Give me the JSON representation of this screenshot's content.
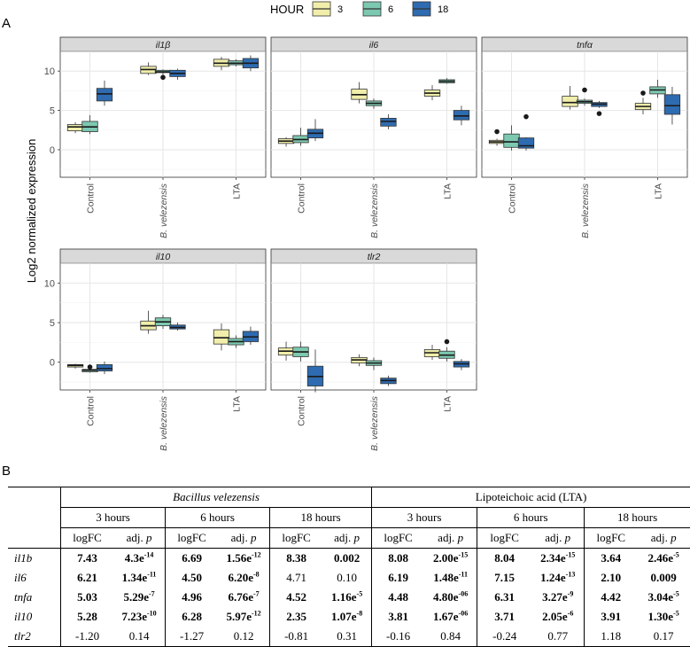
{
  "panels": {
    "a": "A",
    "b": "B"
  },
  "chart_data": {
    "type": "boxplot",
    "legend": {
      "title": "HOUR",
      "entries": [
        "3",
        "6",
        "18"
      ],
      "colors": [
        "#F0EEAA",
        "#7DC8B0",
        "#2E6BB0"
      ],
      "placement": "top-center"
    },
    "ylabel": "Log2 normalized expression",
    "ylim": [
      -3.5,
      12.5
    ],
    "yticks": [
      "0",
      "5",
      "10"
    ],
    "categories": [
      "Control",
      "B. velezensis",
      "LTA"
    ],
    "facets": [
      {
        "title": "il1β",
        "boxes": [
          [
            {
              "q1": 2.4,
              "med": 2.9,
              "q3": 3.2,
              "lo": 2.1,
              "hi": 3.5,
              "out": []
            },
            {
              "q1": 2.3,
              "med": 2.9,
              "q3": 3.6,
              "lo": 2.0,
              "hi": 4.4,
              "out": []
            },
            {
              "q1": 6.2,
              "med": 7.1,
              "q3": 7.8,
              "lo": 5.6,
              "hi": 8.8,
              "out": []
            }
          ],
          [
            {
              "q1": 9.7,
              "med": 10.2,
              "q3": 10.6,
              "lo": 9.5,
              "hi": 11.1,
              "out": []
            },
            {
              "q1": 9.8,
              "med": 9.9,
              "q3": 10.1,
              "lo": 9.5,
              "hi": 10.2,
              "out": [
                9.2
              ]
            },
            {
              "q1": 9.3,
              "med": 9.7,
              "q3": 10.1,
              "lo": 8.9,
              "hi": 10.3,
              "out": []
            }
          ],
          [
            {
              "q1": 10.6,
              "med": 11.0,
              "q3": 11.5,
              "lo": 10.1,
              "hi": 11.8,
              "out": []
            },
            {
              "q1": 10.8,
              "med": 11.0,
              "q3": 11.3,
              "lo": 10.6,
              "hi": 11.5,
              "out": []
            },
            {
              "q1": 10.4,
              "med": 11.0,
              "q3": 11.6,
              "lo": 10.0,
              "hi": 12.0,
              "out": []
            }
          ]
        ]
      },
      {
        "title": "il6",
        "boxes": [
          [
            {
              "q1": 0.8,
              "med": 1.1,
              "q3": 1.4,
              "lo": 0.4,
              "hi": 1.6,
              "out": []
            },
            {
              "q1": 0.9,
              "med": 1.3,
              "q3": 1.8,
              "lo": 0.5,
              "hi": 2.8,
              "out": []
            },
            {
              "q1": 1.5,
              "med": 2.1,
              "q3": 2.6,
              "lo": 1.1,
              "hi": 3.9,
              "out": []
            }
          ],
          [
            {
              "q1": 6.4,
              "med": 7.0,
              "q3": 7.7,
              "lo": 5.9,
              "hi": 8.6,
              "out": []
            },
            {
              "q1": 5.6,
              "med": 5.9,
              "q3": 6.2,
              "lo": 5.2,
              "hi": 6.5,
              "out": []
            },
            {
              "q1": 3.0,
              "med": 3.6,
              "q3": 4.0,
              "lo": 2.6,
              "hi": 4.5,
              "out": []
            }
          ],
          [
            {
              "q1": 6.8,
              "med": 7.2,
              "q3": 7.6,
              "lo": 6.3,
              "hi": 8.2,
              "out": []
            },
            {
              "q1": 8.5,
              "med": 8.7,
              "q3": 8.9,
              "lo": 8.4,
              "hi": 9.1,
              "out": []
            },
            {
              "q1": 3.8,
              "med": 4.3,
              "q3": 5.0,
              "lo": 3.1,
              "hi": 5.6,
              "out": []
            }
          ]
        ]
      },
      {
        "title": "tnfα",
        "boxes": [
          [
            {
              "q1": 0.8,
              "med": 1.0,
              "q3": 1.2,
              "lo": 0.5,
              "hi": 1.4,
              "out": [
                2.3
              ]
            },
            {
              "q1": 0.3,
              "med": 1.0,
              "q3": 2.0,
              "lo": -0.1,
              "hi": 3.1,
              "out": []
            },
            {
              "q1": 0.2,
              "med": 0.5,
              "q3": 1.5,
              "lo": -0.1,
              "hi": 1.6,
              "out": [
                4.2
              ]
            }
          ],
          [
            {
              "q1": 5.5,
              "med": 6.0,
              "q3": 6.8,
              "lo": 5.1,
              "hi": 8.1,
              "out": []
            },
            {
              "q1": 5.9,
              "med": 6.1,
              "q3": 6.3,
              "lo": 5.6,
              "hi": 6.5,
              "out": [
                7.6
              ]
            },
            {
              "q1": 5.5,
              "med": 5.8,
              "q3": 6.0,
              "lo": 5.3,
              "hi": 6.2,
              "out": [
                4.6
              ]
            }
          ],
          [
            {
              "q1": 5.1,
              "med": 5.5,
              "q3": 5.9,
              "lo": 4.5,
              "hi": 6.6,
              "out": [
                7.2
              ]
            },
            {
              "q1": 7.1,
              "med": 7.6,
              "q3": 8.0,
              "lo": 6.6,
              "hi": 8.9,
              "out": []
            },
            {
              "q1": 4.5,
              "med": 5.6,
              "q3": 7.0,
              "lo": 3.2,
              "hi": 8.0,
              "out": []
            }
          ]
        ]
      },
      {
        "title": "il10",
        "boxes": [
          [
            {
              "q1": -0.6,
              "med": -0.4,
              "q3": -0.3,
              "lo": -0.8,
              "hi": -0.2,
              "out": []
            },
            {
              "q1": -1.2,
              "med": -1.0,
              "q3": -0.9,
              "lo": -1.3,
              "hi": -0.8,
              "out": [
                -0.6
              ]
            },
            {
              "q1": -1.1,
              "med": -0.8,
              "q3": -0.3,
              "lo": -1.5,
              "hi": 0.1,
              "out": []
            }
          ],
          [
            {
              "q1": 4.1,
              "med": 4.6,
              "q3": 5.2,
              "lo": 3.6,
              "hi": 6.5,
              "out": []
            },
            {
              "q1": 4.6,
              "med": 5.1,
              "q3": 5.6,
              "lo": 4.2,
              "hi": 6.0,
              "out": []
            },
            {
              "q1": 4.2,
              "med": 4.4,
              "q3": 4.7,
              "lo": 4.0,
              "hi": 5.0,
              "out": []
            }
          ],
          [
            {
              "q1": 2.3,
              "med": 3.1,
              "q3": 4.1,
              "lo": 1.5,
              "hi": 4.9,
              "out": []
            },
            {
              "q1": 2.2,
              "med": 2.6,
              "q3": 3.0,
              "lo": 1.8,
              "hi": 3.4,
              "out": []
            },
            {
              "q1": 2.6,
              "med": 3.2,
              "q3": 3.9,
              "lo": 2.2,
              "hi": 4.5,
              "out": []
            }
          ]
        ]
      },
      {
        "title": "tlr2",
        "boxes": [
          [
            {
              "q1": 0.9,
              "med": 1.4,
              "q3": 1.8,
              "lo": 0.2,
              "hi": 2.6,
              "out": []
            },
            {
              "q1": 0.7,
              "med": 1.3,
              "q3": 1.9,
              "lo": 0.1,
              "hi": 2.6,
              "out": []
            },
            {
              "q1": -3.0,
              "med": -1.8,
              "q3": -0.5,
              "lo": -3.8,
              "hi": 1.6,
              "out": []
            }
          ],
          [
            {
              "q1": -0.1,
              "med": 0.3,
              "q3": 0.6,
              "lo": -0.5,
              "hi": 1.0,
              "out": []
            },
            {
              "q1": -0.4,
              "med": -0.1,
              "q3": 0.2,
              "lo": -1.0,
              "hi": 0.6,
              "out": []
            },
            {
              "q1": -2.7,
              "med": -2.3,
              "q3": -2.0,
              "lo": -3.0,
              "hi": -1.7,
              "out": []
            }
          ],
          [
            {
              "q1": 0.7,
              "med": 1.2,
              "q3": 1.6,
              "lo": 0.3,
              "hi": 2.2,
              "out": []
            },
            {
              "q1": 0.5,
              "med": 0.9,
              "q3": 1.4,
              "lo": 0.1,
              "hi": 1.9,
              "out": [
                2.6
              ]
            },
            {
              "q1": -0.6,
              "med": -0.2,
              "q3": 0.1,
              "lo": -1.0,
              "hi": 0.4,
              "out": []
            }
          ]
        ]
      }
    ]
  },
  "table": {
    "group1": "Bacillus velezensis",
    "group2": "Lipoteichoic acid (LTA)",
    "timepoints": [
      "3 hours",
      "6 hours",
      "18 hours",
      "3 hours",
      "6 hours",
      "18 hours"
    ],
    "col_logfc": "logFC",
    "col_adj": "adj.",
    "col_p": "p",
    "rows": [
      {
        "gene": "il1b",
        "cells": [
          {
            "v": "7.43",
            "b": true
          },
          {
            "m": "4.3e",
            "e": "-14",
            "b": true
          },
          {
            "v": "6.69",
            "b": true
          },
          {
            "m": "1.56e",
            "e": "-12",
            "b": true
          },
          {
            "v": "8.38",
            "b": true
          },
          {
            "v": "0.002",
            "b": true
          },
          {
            "v": "8.08",
            "b": true
          },
          {
            "m": "2.00e",
            "e": "-15",
            "b": true
          },
          {
            "v": "8.04",
            "b": true
          },
          {
            "m": "2.34e",
            "e": "-15",
            "b": true
          },
          {
            "v": "3.64",
            "b": true
          },
          {
            "m": "2.46e",
            "e": "-5",
            "b": true
          }
        ]
      },
      {
        "gene": "il6",
        "cells": [
          {
            "v": "6.21",
            "b": true
          },
          {
            "m": "1.34e",
            "e": "-11",
            "b": true
          },
          {
            "v": "4.50",
            "b": true
          },
          {
            "m": "6.20e",
            "e": "-8",
            "b": true
          },
          {
            "v": "4.71",
            "b": false
          },
          {
            "v": "0.10",
            "b": false
          },
          {
            "v": "6.19",
            "b": true
          },
          {
            "m": "1.48e",
            "e": "-11",
            "b": true
          },
          {
            "v": "7.15",
            "b": true
          },
          {
            "m": "1.24e",
            "e": "-13",
            "b": true
          },
          {
            "v": "2.10",
            "b": true
          },
          {
            "v": "0.009",
            "b": true
          }
        ]
      },
      {
        "gene": "tnfa",
        "cells": [
          {
            "v": "5.03",
            "b": true
          },
          {
            "m": "5.29e",
            "e": "-7",
            "b": true
          },
          {
            "v": "4.96",
            "b": true
          },
          {
            "m": "6.76e",
            "e": "-7",
            "b": true
          },
          {
            "v": "4.52",
            "b": true
          },
          {
            "m": "1.16e",
            "e": "-5",
            "b": true
          },
          {
            "v": "4.48",
            "b": true
          },
          {
            "m": "4.80e",
            "e": "-06",
            "b": true
          },
          {
            "v": "6.31",
            "b": true
          },
          {
            "m": "3.27e",
            "e": "-9",
            "b": true
          },
          {
            "v": "4.42",
            "b": true
          },
          {
            "m": "3.04e",
            "e": "-5",
            "b": true
          }
        ]
      },
      {
        "gene": "il10",
        "cells": [
          {
            "v": "5.28",
            "b": true
          },
          {
            "m": "7.23e",
            "e": "-10",
            "b": true
          },
          {
            "v": "6.28",
            "b": true
          },
          {
            "m": "5.97e",
            "e": "-12",
            "b": true
          },
          {
            "v": "2.35",
            "b": true
          },
          {
            "m": "1.07e",
            "e": "-8",
            "b": true
          },
          {
            "v": "3.81",
            "b": true
          },
          {
            "m": "1.67e",
            "e": "-06",
            "b": true
          },
          {
            "v": "3.71",
            "b": true
          },
          {
            "m": "2.05e",
            "e": "-6",
            "b": true
          },
          {
            "v": "3.91",
            "b": true
          },
          {
            "m": "1.30e",
            "e": "-5",
            "b": true
          }
        ]
      },
      {
        "gene": "tlr2",
        "cells": [
          {
            "v": "-1.20",
            "b": false
          },
          {
            "v": "0.14",
            "b": false
          },
          {
            "v": "-1.27",
            "b": false
          },
          {
            "v": "0.12",
            "b": false
          },
          {
            "v": "-0.81",
            "b": false
          },
          {
            "v": "0.31",
            "b": false
          },
          {
            "v": "-0.16",
            "b": false
          },
          {
            "v": "0.84",
            "b": false
          },
          {
            "v": "-0.24",
            "b": false
          },
          {
            "v": "0.77",
            "b": false
          },
          {
            "v": "1.18",
            "b": false
          },
          {
            "v": "0.17",
            "b": false
          }
        ]
      }
    ]
  }
}
